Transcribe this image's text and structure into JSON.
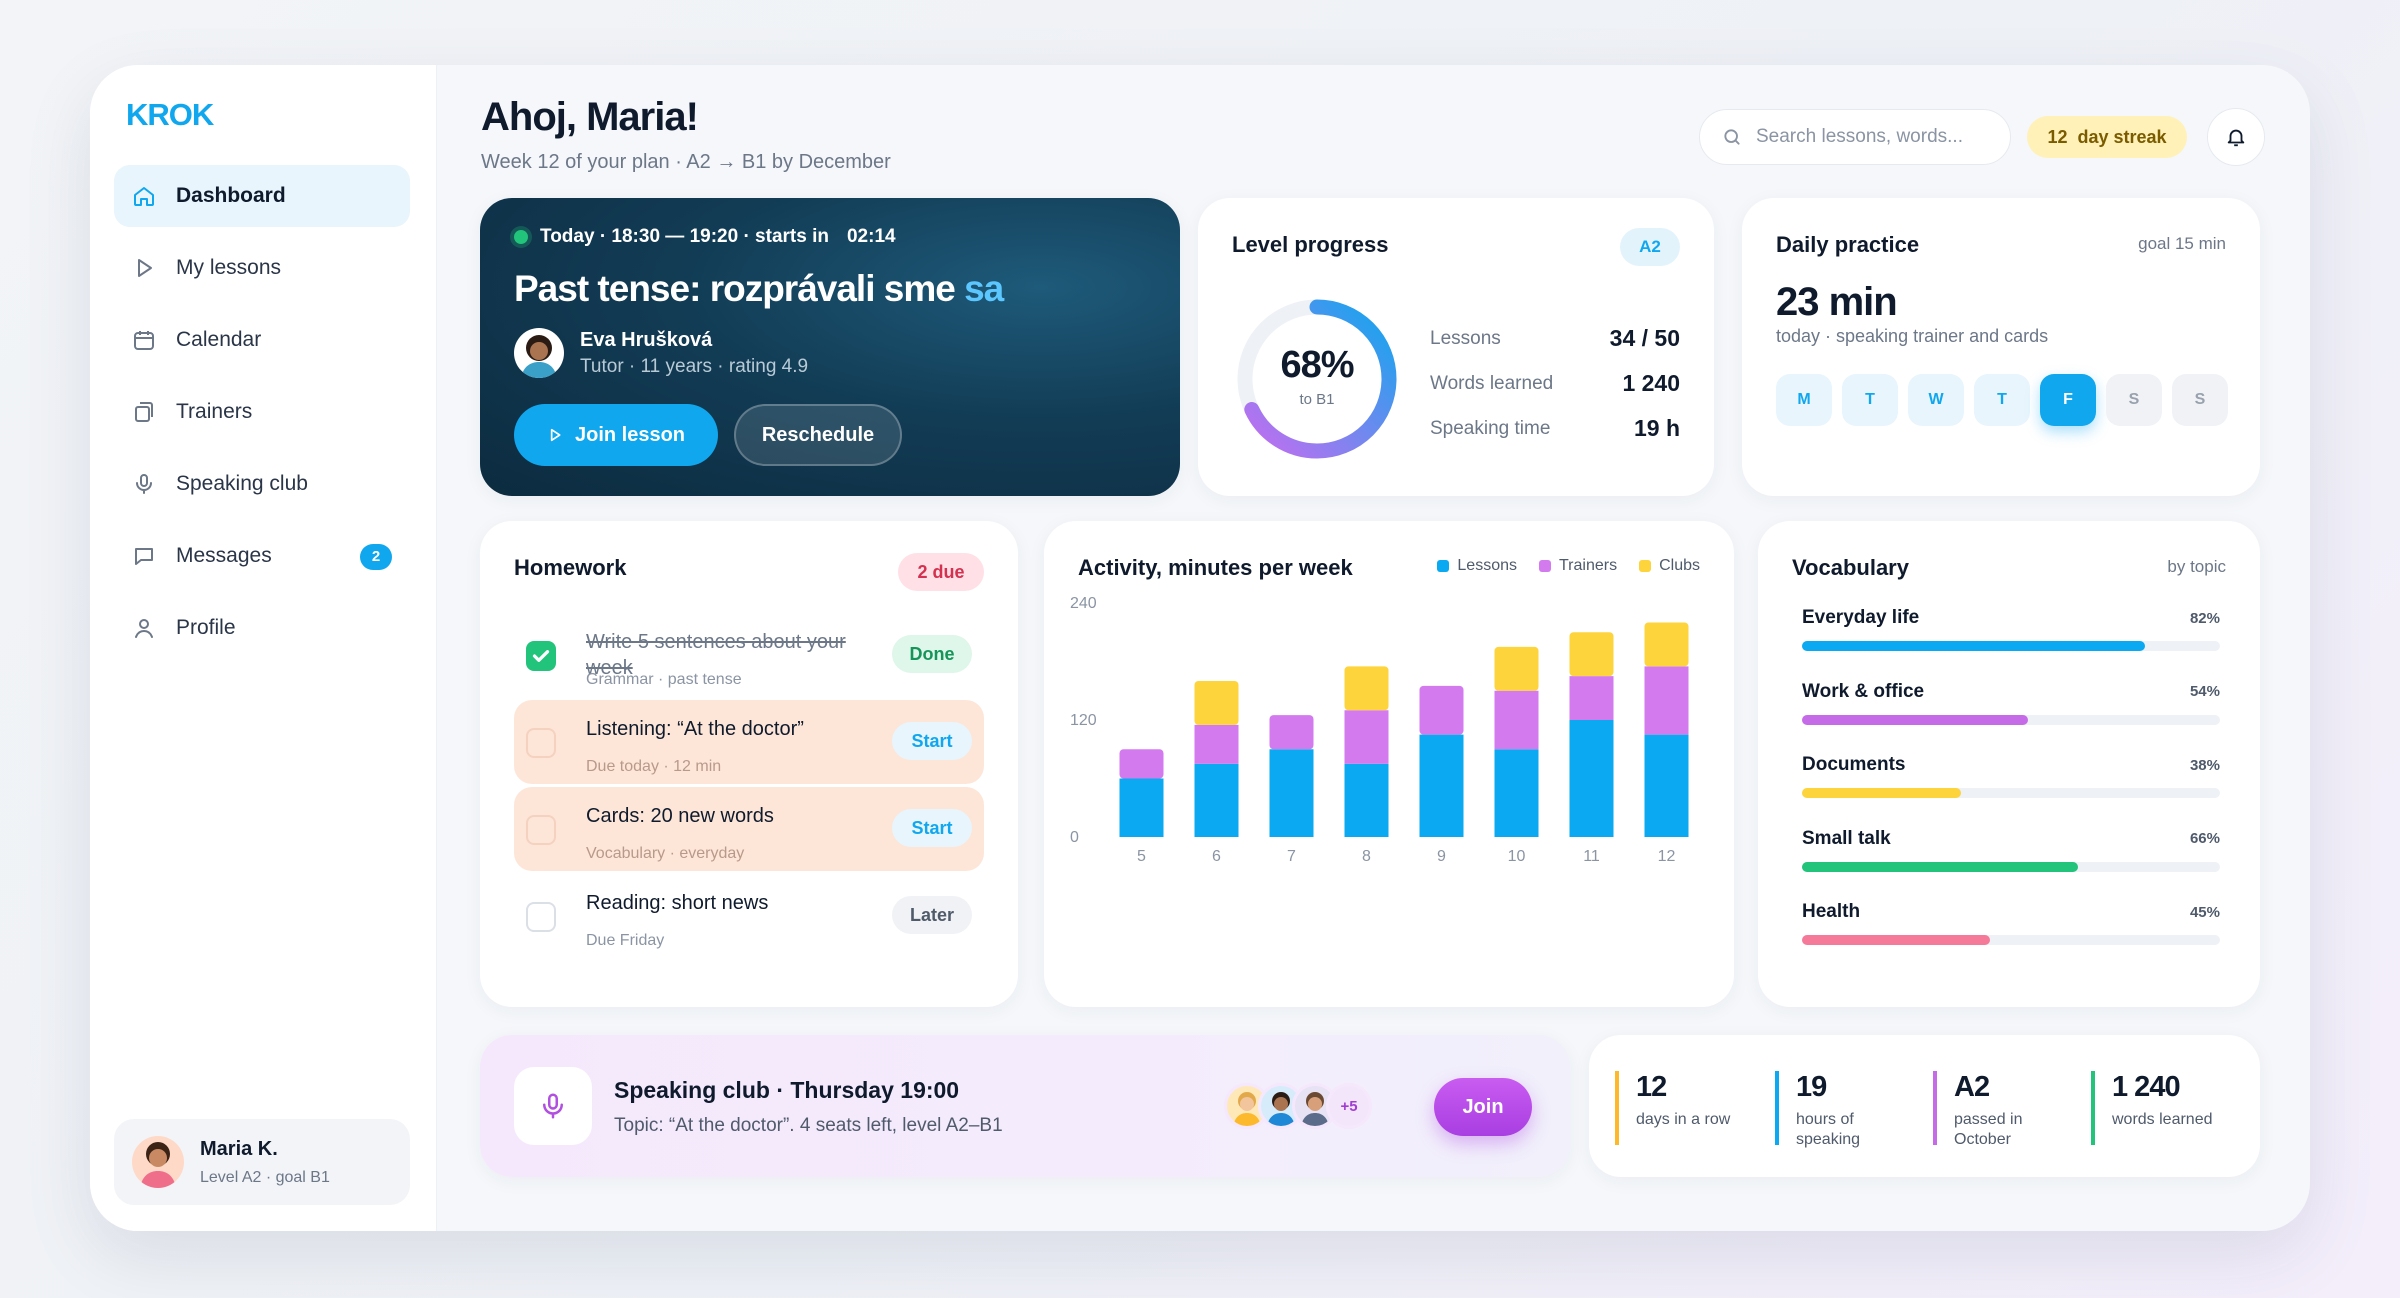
{
  "brand": {
    "logo": "KROK",
    "color": "#10a7ee"
  },
  "sidebar": {
    "items": [
      {
        "label": "Dashboard",
        "icon": "home-icon",
        "active": true
      },
      {
        "label": "My lessons",
        "icon": "play-icon"
      },
      {
        "label": "Calendar",
        "icon": "calendar-icon"
      },
      {
        "label": "Trainers",
        "icon": "cards-icon"
      },
      {
        "label": "Speaking club",
        "icon": "microphone-icon"
      },
      {
        "label": "Messages",
        "icon": "chat-icon",
        "badge": "2"
      },
      {
        "label": "Profile",
        "icon": "user-icon"
      }
    ],
    "user": {
      "name": "Maria K.",
      "sub": "Level A2 · goal B1"
    }
  },
  "header": {
    "greeting": "Ahoj, Maria!",
    "subtitle": "Week 12 of your plan · A2 → B1 by December",
    "search_placeholder": "Search lessons, words...",
    "streak_num": "12",
    "streak_label": "day streak"
  },
  "lesson": {
    "time": "Today · 18:30 — 19:20 · starts in",
    "countdown": "02:14",
    "title_main": "Past tense: rozprávali sme",
    "title_highlight": "sa",
    "tutor_name": "Eva Hrušková",
    "tutor_sub": "Tutor · 11 years · rating 4.9",
    "join_label": "Join lesson",
    "reschedule_label": "Reschedule"
  },
  "level": {
    "title": "Level progress",
    "badge": "A2",
    "percent_label": "68%",
    "percent": 68,
    "ring_sub": "to B1",
    "stats": [
      {
        "label": "Lessons",
        "value": "34 / 50"
      },
      {
        "label": "Words learned",
        "value": "1 240"
      },
      {
        "label": "Speaking time",
        "value": "19 h"
      }
    ]
  },
  "daily": {
    "title": "Daily practice",
    "goal": "goal 15 min",
    "minutes": "23 min",
    "sub": "today · speaking trainer and cards",
    "days": [
      {
        "label": "M",
        "state": "done"
      },
      {
        "label": "T",
        "state": "done"
      },
      {
        "label": "W",
        "state": "done"
      },
      {
        "label": "T",
        "state": "done"
      },
      {
        "label": "F",
        "state": "today"
      },
      {
        "label": "S",
        "state": "off"
      },
      {
        "label": "S",
        "state": "off"
      }
    ]
  },
  "homework": {
    "title": "Homework",
    "due_badge": "2 due",
    "items": [
      {
        "title": "Write 5 sentences about your week",
        "sub": "Grammar · past tense",
        "action": "Done",
        "state": "done"
      },
      {
        "title": "Listening: “At the doctor”",
        "sub": "Due today · 12 min",
        "action": "Start",
        "state": "warn"
      },
      {
        "title": "Cards: 20 new words",
        "sub": "Vocabulary · everyday",
        "action": "Start",
        "state": "warn"
      },
      {
        "title": "Reading: short news",
        "sub": "Due Friday",
        "action": "Later",
        "state": "todo"
      }
    ]
  },
  "activity": {
    "title": "Activity, minutes per week",
    "legend": [
      {
        "name": "Lessons",
        "color": "#0aa9f2"
      },
      {
        "name": "Trainers",
        "color": "#d47aef"
      },
      {
        "name": "Clubs",
        "color": "#fdd43c"
      }
    ]
  },
  "chart_data": {
    "type": "bar",
    "stacked": true,
    "categories": [
      "5",
      "6",
      "7",
      "8",
      "9",
      "10",
      "11",
      "12"
    ],
    "series": [
      {
        "name": "Lessons",
        "values": [
          60,
          75,
          90,
          75,
          105,
          90,
          120,
          105
        ]
      },
      {
        "name": "Trainers",
        "values": [
          30,
          40,
          35,
          55,
          50,
          60,
          45,
          70
        ]
      },
      {
        "name": "Clubs",
        "values": [
          0,
          45,
          0,
          45,
          0,
          45,
          45,
          45
        ]
      }
    ],
    "ylim": [
      0,
      240
    ],
    "yticks": [
      0,
      120,
      240
    ],
    "legend": "top-right",
    "grid": false
  },
  "vocab": {
    "title": "Vocabulary",
    "by_topic": "by topic",
    "items": [
      {
        "name": "Everyday life",
        "pct": "82%",
        "value": 82,
        "color": "#0aa9f2"
      },
      {
        "name": "Work & office",
        "pct": "54%",
        "value": 54,
        "color": "#c66be8"
      },
      {
        "name": "Documents",
        "pct": "38%",
        "value": 38,
        "color": "#fdd43c"
      },
      {
        "name": "Small talk",
        "pct": "66%",
        "value": 66,
        "color": "#22c37a"
      },
      {
        "name": "Health",
        "pct": "45%",
        "value": 45,
        "color": "#f57a9a"
      }
    ]
  },
  "club": {
    "title": "Speaking club · Thursday 19:00",
    "sub": "Topic: “At the doctor”. 4 seats left, level A2–B1",
    "more": "+5",
    "join_label": "Join"
  },
  "summary": [
    {
      "value": "12",
      "label": "days in a row",
      "color": "#fdb92c"
    },
    {
      "value": "19",
      "label": "hours of speaking",
      "color": "#0aa9f2"
    },
    {
      "value": "A2",
      "label": "passed in October",
      "color": "#c66be8"
    },
    {
      "value": "1 240",
      "label": "words learned",
      "color": "#22c37a"
    }
  ]
}
